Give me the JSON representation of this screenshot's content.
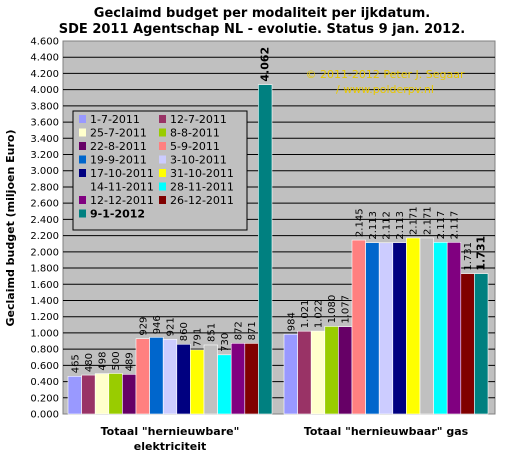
{
  "chart_data": {
    "type": "bar",
    "title_lines": [
      "Geclaimd budget per modaliteit per ijkdatum.",
      "SDE 2011 Agentschap NL - evolutie. Status 9 jan. 2012."
    ],
    "ylabel": "Geclaimd budget (miljoen Euro)",
    "ylim": [
      0,
      4.6
    ],
    "ytick_step": 0.2,
    "yticks": [
      "0.000",
      "0.200",
      "0.400",
      "0.600",
      "0.800",
      "1.000",
      "1.200",
      "1.400",
      "1.600",
      "1.800",
      "2.000",
      "2.200",
      "2.400",
      "2.600",
      "2.800",
      "3.000",
      "3.200",
      "3.400",
      "3.600",
      "3.800",
      "4.000",
      "4.200",
      "4.400",
      "4.600"
    ],
    "categories": [
      "Totaal \"hernieuwbare\" elektriciteit",
      "Totaal \"hernieuwbaar\" gas"
    ],
    "category_label_lines": [
      [
        "Totaal \"hernieuwbare\"",
        "elektriciteit"
      ],
      [
        "Totaal \"hernieuwbaar\" gas"
      ]
    ],
    "annotation_lines": [
      "© 2011-2012 Peter J. Segaar",
      "/ www.polderpv.nl"
    ],
    "legend_position": "left, inside plot area",
    "series": [
      {
        "name": "1-7-2011",
        "color": "#9999ff",
        "values": [
          0.465,
          0.984
        ],
        "labels": [
          "465",
          "984"
        ]
      },
      {
        "name": "12-7-2011",
        "color": "#993366",
        "values": [
          0.48,
          1.021
        ],
        "labels": [
          "480",
          "1.021"
        ]
      },
      {
        "name": "25-7-2011",
        "color": "#ffffcc",
        "values": [
          0.498,
          1.022
        ],
        "labels": [
          "498",
          "1.022"
        ]
      },
      {
        "name": "8-8-2011",
        "color": "#99cc00",
        "values": [
          0.5,
          1.08
        ],
        "labels": [
          "500",
          "1.080"
        ]
      },
      {
        "name": "22-8-2011",
        "color": "#660066",
        "values": [
          0.489,
          1.077
        ],
        "labels": [
          "489",
          "1.077"
        ]
      },
      {
        "name": "5-9-2011",
        "color": "#ff8080",
        "values": [
          0.929,
          2.145
        ],
        "labels": [
          "929",
          "2.145"
        ]
      },
      {
        "name": "19-9-2011",
        "color": "#0066cc",
        "values": [
          0.946,
          2.113
        ],
        "labels": [
          "946",
          "2.113"
        ]
      },
      {
        "name": "3-10-2011",
        "color": "#ccccff",
        "values": [
          0.921,
          2.112
        ],
        "labels": [
          "921",
          "2.112"
        ]
      },
      {
        "name": "17-10-2011",
        "color": "#000080",
        "values": [
          0.86,
          2.113
        ],
        "labels": [
          "860",
          "2.113"
        ]
      },
      {
        "name": "31-10-2011",
        "color": "#ffff00",
        "values": [
          0.791,
          2.171
        ],
        "labels": [
          "791",
          "2.171"
        ]
      },
      {
        "name": "14-11-2011",
        "color": "#c0c0c0",
        "values": [
          0.851,
          2.171
        ],
        "labels": [
          "851",
          "2.171"
        ]
      },
      {
        "name": "28-11-2011",
        "color": "#00ffff",
        "values": [
          0.73,
          2.117
        ],
        "labels": [
          "730",
          "2.117"
        ]
      },
      {
        "name": "12-12-2011",
        "color": "#800080",
        "values": [
          0.872,
          2.117
        ],
        "labels": [
          "872",
          "2.117"
        ]
      },
      {
        "name": "26-12-2011",
        "color": "#800000",
        "values": [
          0.871,
          1.731
        ],
        "labels": [
          "871",
          "1.731"
        ]
      },
      {
        "name": "9-1-2012",
        "color": "#008080",
        "values": [
          4.062,
          1.731
        ],
        "labels": [
          "4.062",
          "1.731"
        ],
        "bold": true
      }
    ],
    "colors": {
      "plot_background": "#c0c0c0",
      "legend_background": "#c0c0c0",
      "annotation": "#e8c800"
    }
  }
}
